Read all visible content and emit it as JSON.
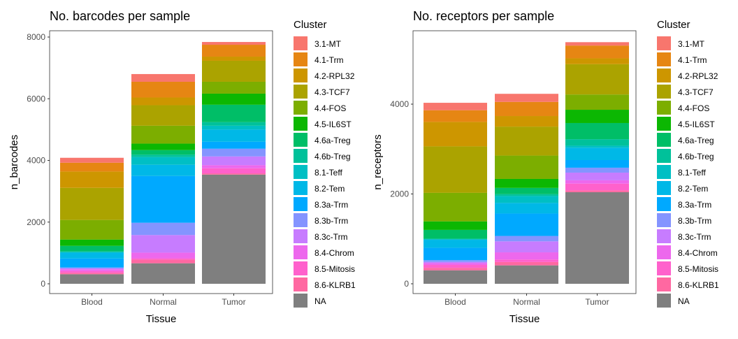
{
  "chart_data": [
    {
      "type": "bar",
      "stacked": true,
      "title": "No. barcodes per sample",
      "xlabel": "Tissue",
      "ylabel": "n_barcodes",
      "categories": [
        "Blood",
        "Normal",
        "Tumor"
      ],
      "yticks": [
        0,
        2000,
        4000,
        6000,
        8000
      ],
      "ylim": [
        0,
        8000
      ],
      "legend_title": "Cluster",
      "legend_position": "right",
      "series": [
        {
          "name": "3.1-MT",
          "color": "#F8766D",
          "values": [
            160,
            250,
            90
          ]
        },
        {
          "name": "4.1-Trm",
          "color": "#E68613",
          "values": [
            285,
            510,
            385
          ]
        },
        {
          "name": "4.2-RPL32",
          "color": "#CD9600",
          "values": [
            530,
            250,
            135
          ]
        },
        {
          "name": "4.3-TCF7",
          "color": "#ABA300",
          "values": [
            1040,
            665,
            680
          ]
        },
        {
          "name": "4.4-FOS",
          "color": "#7CAE00",
          "values": [
            635,
            580,
            385
          ]
        },
        {
          "name": "4.5-IL6ST",
          "color": "#0CB702",
          "values": [
            205,
            210,
            360
          ]
        },
        {
          "name": "4.6a-Treg",
          "color": "#00BE67",
          "values": [
            180,
            150,
            565
          ]
        },
        {
          "name": "4.6b-Treg",
          "color": "#00C19A",
          "values": [
            20,
            75,
            115
          ]
        },
        {
          "name": "8.1-Teff",
          "color": "#00BFC4",
          "values": [
            20,
            250,
            125
          ]
        },
        {
          "name": "8.2-Tem",
          "color": "#00B8E7",
          "values": [
            190,
            365,
            395
          ]
        },
        {
          "name": "8.3a-Trm",
          "color": "#00A9FF",
          "values": [
            290,
            1515,
            225
          ]
        },
        {
          "name": "8.3b-Trm",
          "color": "#8494FF",
          "values": [
            30,
            400,
            250
          ]
        },
        {
          "name": "8.3c-Trm",
          "color": "#C77CFF",
          "values": [
            30,
            570,
            285
          ]
        },
        {
          "name": "8.4-Chrom",
          "color": "#ED68ED",
          "values": [
            60,
            185,
            100
          ]
        },
        {
          "name": "8.5-Mitosis",
          "color": "#FF61CC",
          "values": [
            55,
            40,
            165
          ]
        },
        {
          "name": "8.6-KLRB1",
          "color": "#FF68A1",
          "values": [
            45,
            120,
            40
          ]
        },
        {
          "name": "NA",
          "color": "#7F7F7F",
          "values": [
            310,
            665,
            3540
          ]
        }
      ]
    },
    {
      "type": "bar",
      "stacked": true,
      "title": "No. receptors per sample",
      "xlabel": "Tissue",
      "ylabel": "n_receptors",
      "categories": [
        "Blood",
        "Normal",
        "Tumor"
      ],
      "yticks": [
        0,
        2000,
        4000
      ],
      "ylim": [
        0,
        5400
      ],
      "legend_title": "Cluster",
      "legend_position": "right",
      "series": [
        {
          "name": "3.1-MT",
          "color": "#F8766D",
          "values": [
            165,
            180,
            75
          ]
        },
        {
          "name": "4.1-Trm",
          "color": "#E68613",
          "values": [
            260,
            315,
            285
          ]
        },
        {
          "name": "4.2-RPL32",
          "color": "#CD9600",
          "values": [
            545,
            235,
            130
          ]
        },
        {
          "name": "4.3-TCF7",
          "color": "#ABA300",
          "values": [
            1035,
            645,
            675
          ]
        },
        {
          "name": "4.4-FOS",
          "color": "#7CAE00",
          "values": [
            635,
            520,
            340
          ]
        },
        {
          "name": "4.5-IL6ST",
          "color": "#0CB702",
          "values": [
            190,
            200,
            295
          ]
        },
        {
          "name": "4.6a-Treg",
          "color": "#00BE67",
          "values": [
            195,
            140,
            360
          ]
        },
        {
          "name": "4.6b-Treg",
          "color": "#00C19A",
          "values": [
            10,
            40,
            145
          ]
        },
        {
          "name": "8.1-Teff",
          "color": "#00BFC4",
          "values": [
            15,
            155,
            45
          ]
        },
        {
          "name": "8.2-Tem",
          "color": "#00B8E7",
          "values": [
            180,
            235,
            275
          ]
        },
        {
          "name": "8.3a-Trm",
          "color": "#00A9FF",
          "values": [
            275,
            500,
            170
          ]
        },
        {
          "name": "8.3b-Trm",
          "color": "#8494FF",
          "values": [
            40,
            120,
            110
          ]
        },
        {
          "name": "8.3c-Trm",
          "color": "#C77CFF",
          "values": [
            25,
            245,
            170
          ]
        },
        {
          "name": "8.4-Chrom",
          "color": "#ED68ED",
          "values": [
            40,
            160,
            75
          ]
        },
        {
          "name": "8.5-Mitosis",
          "color": "#FF61CC",
          "values": [
            65,
            55,
            150
          ]
        },
        {
          "name": "8.6-KLRB1",
          "color": "#FF68A1",
          "values": [
            55,
            75,
            40
          ]
        },
        {
          "name": "NA",
          "color": "#7F7F7F",
          "values": [
            300,
            410,
            2040
          ]
        }
      ]
    }
  ]
}
